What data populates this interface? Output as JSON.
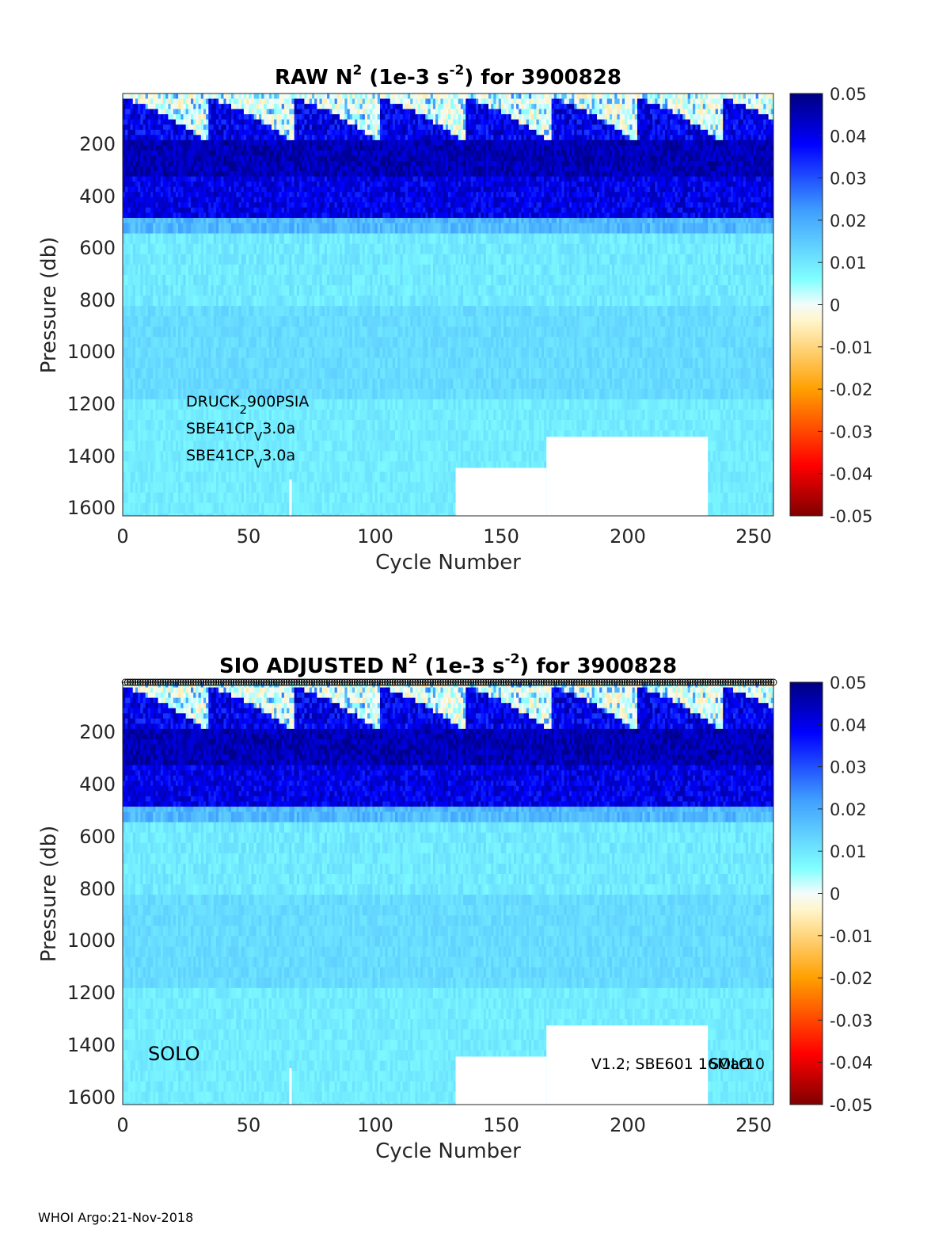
{
  "footer": "WHOI Argo:21-Nov-2018",
  "chart_data": [
    {
      "type": "heatmap",
      "title_parts": [
        "RAW N",
        "2",
        " (1e-3 s",
        "-2",
        ") for 3900828"
      ],
      "xlabel": "Cycle Number",
      "ylabel": "Pressure (db)",
      "xlim": [
        0,
        258
      ],
      "ylim": [
        1640,
        10
      ],
      "x_ticks": [
        "0",
        "50",
        "100",
        "150",
        "200",
        "250"
      ],
      "y_ticks": [
        "200",
        "400",
        "600",
        "800",
        "1000",
        "1200",
        "1400",
        "1600"
      ],
      "colorbar": {
        "range": [
          -0.05,
          0.05
        ],
        "ticks": [
          "0.05",
          "0.04",
          "0.03",
          "0.02",
          "0.01",
          "0",
          "-0.01",
          "-0.02",
          "-0.03",
          "-0.04",
          "-0.05"
        ]
      },
      "annotations": [
        {
          "parts": [
            "DRUCK",
            "2",
            "900PSIA"
          ]
        },
        {
          "parts": [
            "SBE41CP",
            "V",
            "3.0a"
          ]
        },
        {
          "parts": [
            "SBE41CP",
            "V",
            "3.0a"
          ]
        }
      ],
      "missing_regions": [
        {
          "x": [
            132,
            168
          ],
          "p": [
            1455,
            1640
          ]
        },
        {
          "x": [
            168,
            232
          ],
          "p": [
            1335,
            1640
          ]
        },
        {
          "x": [
            66,
            67
          ],
          "p": [
            1500,
            1640
          ]
        }
      ]
    },
    {
      "type": "heatmap",
      "title_parts": [
        "SIO  ADJUSTED N",
        "2",
        " (1e-3 s",
        "-2",
        ") for 3900828"
      ],
      "xlabel": "Cycle Number",
      "ylabel": "Pressure (db)",
      "xlim": [
        0,
        258
      ],
      "ylim": [
        1640,
        10
      ],
      "x_ticks": [
        "0",
        "50",
        "100",
        "150",
        "200",
        "250"
      ],
      "y_ticks": [
        "200",
        "400",
        "600",
        "800",
        "1000",
        "1200",
        "1400",
        "1600"
      ],
      "colorbar": {
        "range": [
          -0.05,
          0.05
        ],
        "ticks": [
          "0.05",
          "0.04",
          "0.03",
          "0.02",
          "0.01",
          "0",
          "-0.01",
          "-0.02",
          "-0.03",
          "-0.04",
          "-0.05"
        ]
      },
      "annotations_left": [
        "SOLO"
      ],
      "annotations_right": [
        "V1.2; SBE601 16Mar10",
        "SOLO"
      ],
      "top_markers": {
        "count": 258,
        "symbol": "circle"
      },
      "missing_regions": [
        {
          "x": [
            132,
            168
          ],
          "p": [
            1455,
            1640
          ]
        },
        {
          "x": [
            168,
            232
          ],
          "p": [
            1335,
            1640
          ]
        },
        {
          "x": [
            66,
            67
          ],
          "p": [
            1500,
            1640
          ]
        }
      ]
    }
  ]
}
